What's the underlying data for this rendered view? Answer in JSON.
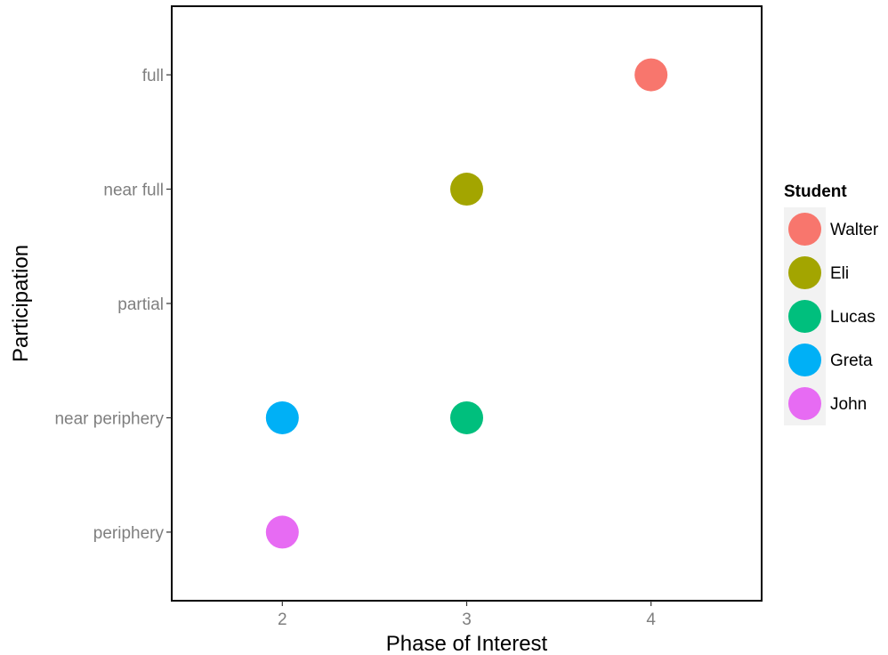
{
  "chart_data": {
    "type": "scatter",
    "xlabel": "Phase of Interest",
    "ylabel": "Participation",
    "x_ticks": [
      "2",
      "3",
      "4"
    ],
    "x_range": [
      1.4,
      4.6
    ],
    "y_categories": [
      "periphery",
      "near periphery",
      "partial",
      "near full",
      "full"
    ],
    "grid": false,
    "legend": {
      "title": "Student",
      "position": "right"
    },
    "series": [
      {
        "name": "Walter",
        "color": "#F8766D",
        "points": [
          {
            "x": 4,
            "y": "full"
          }
        ]
      },
      {
        "name": "Eli",
        "color": "#A3A500",
        "points": [
          {
            "x": 3,
            "y": "near full"
          }
        ]
      },
      {
        "name": "Lucas",
        "color": "#00BF7D",
        "points": [
          {
            "x": 3,
            "y": "near periphery"
          }
        ]
      },
      {
        "name": "Greta",
        "color": "#00B0F6",
        "points": [
          {
            "x": 2,
            "y": "near periphery"
          }
        ]
      },
      {
        "name": "John",
        "color": "#E76BF3",
        "points": [
          {
            "x": 2,
            "y": "periphery"
          }
        ]
      }
    ]
  }
}
